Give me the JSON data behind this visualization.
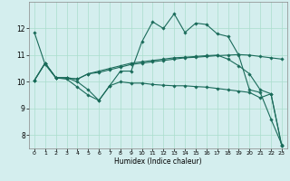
{
  "xlabel": "Humidex (Indice chaleur)",
  "bg_color": "#d4eeee",
  "grid_color": "#aaddcc",
  "line_color": "#1a6b5a",
  "marker": "D",
  "marker_size": 1.8,
  "line_width": 0.8,
  "xlim": [
    -0.5,
    23.5
  ],
  "ylim": [
    7.5,
    13.0
  ],
  "xticks": [
    0,
    1,
    2,
    3,
    4,
    5,
    6,
    7,
    8,
    9,
    10,
    11,
    12,
    13,
    14,
    15,
    16,
    17,
    18,
    19,
    20,
    21,
    22,
    23
  ],
  "yticks": [
    8,
    9,
    10,
    11,
    12
  ],
  "series": [
    [
      11.85,
      10.65,
      10.15,
      10.1,
      9.8,
      9.5,
      9.3,
      9.85,
      10.4,
      10.4,
      11.5,
      12.25,
      12.0,
      12.55,
      11.85,
      12.2,
      12.15,
      11.8,
      11.7,
      11.0,
      9.7,
      9.6,
      8.6,
      7.65
    ],
    [
      10.05,
      10.7,
      10.15,
      10.15,
      10.1,
      10.3,
      10.35,
      10.45,
      10.55,
      10.65,
      10.7,
      10.75,
      10.8,
      10.85,
      10.9,
      10.92,
      10.95,
      10.98,
      11.0,
      11.02,
      11.0,
      10.95,
      10.9,
      10.85
    ],
    [
      10.05,
      10.7,
      10.15,
      10.15,
      10.1,
      10.3,
      10.4,
      10.5,
      10.6,
      10.7,
      10.75,
      10.8,
      10.85,
      10.9,
      10.92,
      10.95,
      10.98,
      11.0,
      10.85,
      10.6,
      10.3,
      9.7,
      9.55,
      7.6
    ],
    [
      10.05,
      10.7,
      10.15,
      10.15,
      10.0,
      9.7,
      9.3,
      9.85,
      10.0,
      9.95,
      9.95,
      9.9,
      9.87,
      9.85,
      9.85,
      9.82,
      9.8,
      9.75,
      9.7,
      9.65,
      9.6,
      9.4,
      9.55,
      7.6
    ]
  ]
}
